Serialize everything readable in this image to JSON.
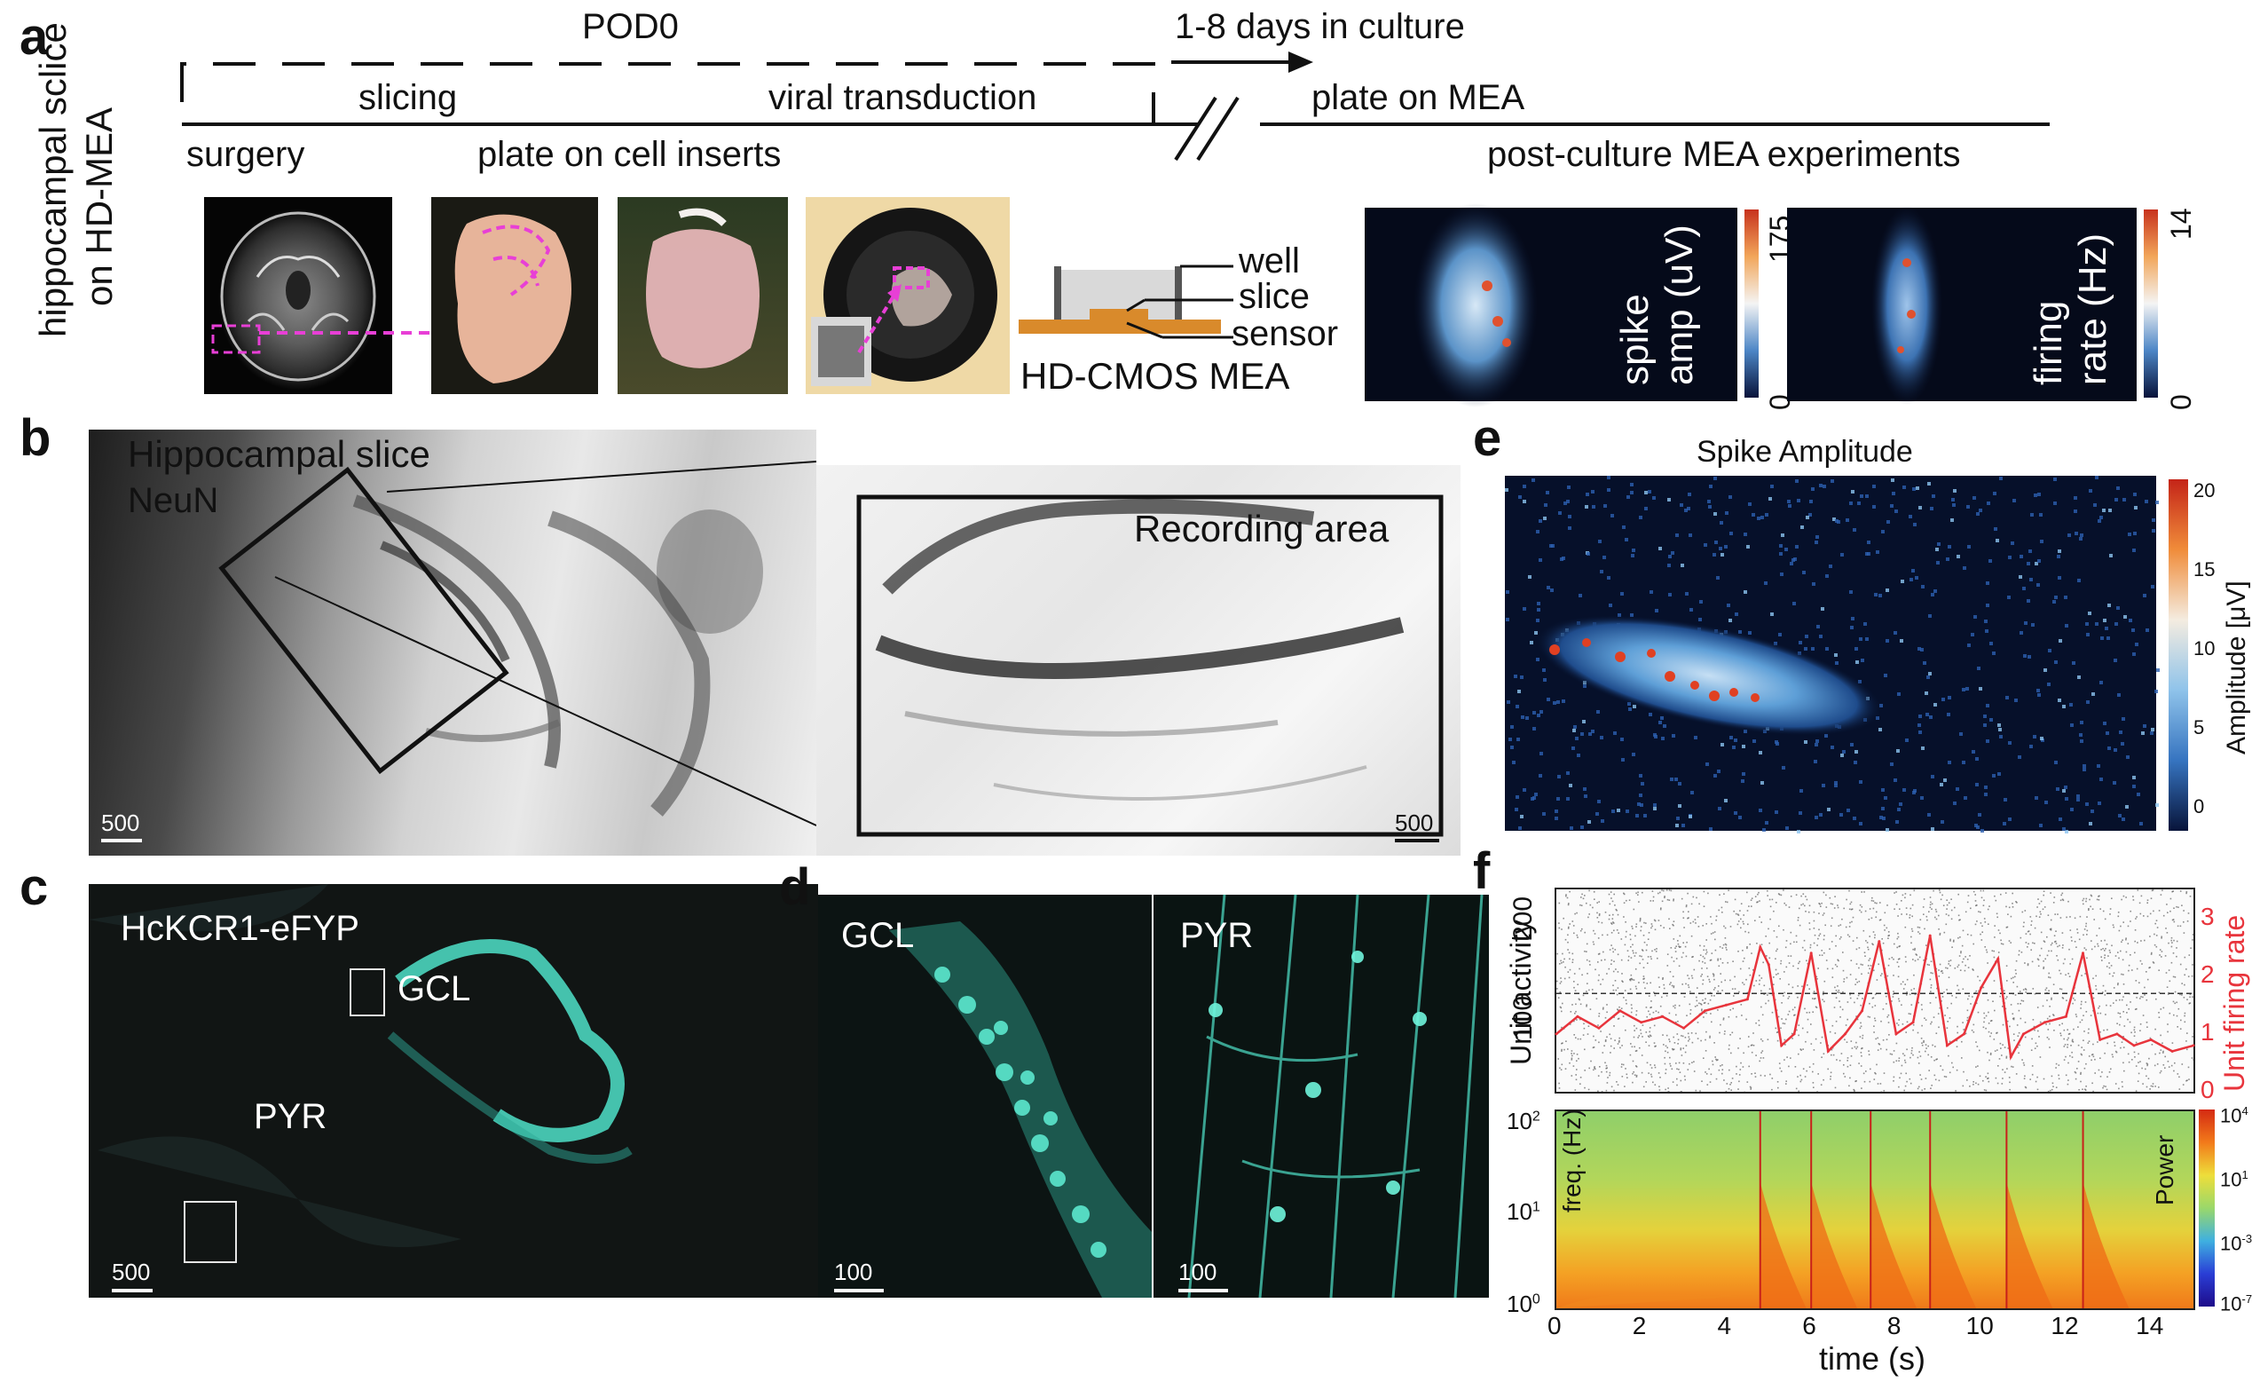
{
  "panels": {
    "a": {
      "letter": "a",
      "side_label_1": "hippocampal sclice",
      "side_label_2": "on HD-MEA",
      "timeline": {
        "pod0": "POD0",
        "days": "1-8 days in culture",
        "slicing": "slicing",
        "viral": "viral transduction",
        "plate_mea": "plate on MEA",
        "surgery": "surgery",
        "plate_inserts": "plate on cell inserts",
        "post_culture": "post-culture MEA experiments"
      },
      "diagram": {
        "well": "well",
        "slice": "slice",
        "sensor": "sensor",
        "caption": "HD-CMOS MEA"
      },
      "map1": {
        "label_1": "spike",
        "label_2": "amp (uV)",
        "cbar_max": "175",
        "cbar_min": "0"
      },
      "map2": {
        "label_1": "firing",
        "label_2": "rate (Hz)",
        "cbar_max": "14",
        "cbar_min": "0"
      }
    },
    "b": {
      "letter": "b",
      "title": "Hippocampal slice",
      "stain": "NeuN",
      "scale_left": "500",
      "recording_area": "Recording area",
      "scale_right": "500"
    },
    "c": {
      "letter": "c",
      "title": "HcKCR1-eFYP",
      "gcl": "GCL",
      "pyr": "PYR",
      "scale": "500"
    },
    "d": {
      "letter": "d",
      "left_label": "GCL",
      "right_label": "PYR",
      "scale_left": "100",
      "scale_right": "100"
    },
    "e": {
      "letter": "e",
      "title": "Spike Amplitude",
      "cbar_label": "Amplitude [μV]",
      "cbar_ticks": [
        "20",
        "15",
        "10",
        "5",
        "0"
      ]
    },
    "f": {
      "letter": "f",
      "ylabel_left": "Unit activity",
      "ylabel_right": "Unit firing rate",
      "left_ticks": [
        "200",
        "100"
      ],
      "right_ticks": [
        "3",
        "2",
        "1",
        "0"
      ],
      "spec_ylabel": "freq. (Hz)",
      "spec_clabel": "Power",
      "spec_yticks": [
        "10",
        "10",
        "10"
      ],
      "spec_yexp": [
        "2",
        "1",
        "0"
      ],
      "spec_cticks": [
        "10",
        "10",
        "10",
        "10"
      ],
      "spec_cexp": [
        "4",
        "1",
        "-3",
        "-7"
      ],
      "xticks": [
        "0",
        "2",
        "4",
        "6",
        "8",
        "10",
        "12",
        "14"
      ],
      "xlabel": "time (s)"
    }
  },
  "colors": {
    "accent_red": "#e8343c",
    "magenta": "#e83fd6",
    "sensor_orange": "#d98a2b",
    "cyan_fluor": "#4fe0c8"
  },
  "chart_data": {
    "type": "line",
    "title": "",
    "xlabel": "time (s)",
    "ylabel": "Unit firing rate",
    "xlim": [
      0,
      15
    ],
    "ylim": [
      0,
      3.5
    ],
    "x": [
      0,
      0.5,
      1,
      1.5,
      2,
      2.5,
      3,
      3.5,
      4,
      4.5,
      4.8,
      5.0,
      5.3,
      5.6,
      6.0,
      6.4,
      6.8,
      7.2,
      7.6,
      8.0,
      8.4,
      8.8,
      9.2,
      9.6,
      10.0,
      10.4,
      10.7,
      11.0,
      11.5,
      12.0,
      12.4,
      12.8,
      13.2,
      13.6,
      14.0,
      14.5,
      15.0
    ],
    "series": [
      {
        "values": [
          1.0,
          1.3,
          1.1,
          1.4,
          1.2,
          1.3,
          1.1,
          1.4,
          1.5,
          1.6,
          2.5,
          2.2,
          0.8,
          1.0,
          2.4,
          0.7,
          1.0,
          1.4,
          2.6,
          1.0,
          1.2,
          2.7,
          0.8,
          1.0,
          1.8,
          2.3,
          0.6,
          1.0,
          1.2,
          1.3,
          2.4,
          0.9,
          1.0,
          0.8,
          0.9,
          0.7,
          0.8
        ]
      }
    ]
  }
}
